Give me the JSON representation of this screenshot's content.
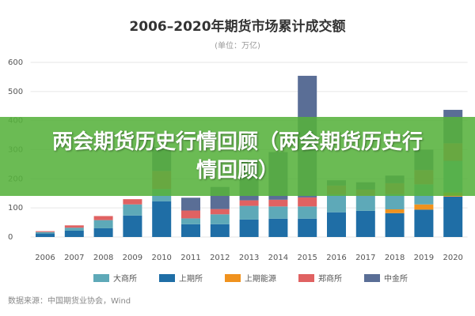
{
  "chart_data": {
    "type": "stacked_bar",
    "title": "2006–2020年期货市场累计成交额",
    "subtitle": "(单位：万亿)",
    "categories": [
      "2006",
      "2007",
      "2008",
      "2009",
      "2010",
      "2011",
      "2012",
      "2013",
      "2014",
      "2015",
      "2016",
      "2017",
      "2018",
      "2019",
      "2020"
    ],
    "series": [
      {
        "name": "大商所",
        "color": "#5ea9b8",
        "values": [
          5,
          10,
          28,
          38,
          42,
          20,
          34,
          47,
          42,
          42,
          61,
          52,
          52,
          69,
          109
        ]
      },
      {
        "name": "上期所",
        "color": "#1f6ea6",
        "values": [
          12,
          22,
          30,
          74,
          123,
          44,
          44,
          60,
          63,
          63,
          85,
          90,
          82,
          94,
          139
        ]
      },
      {
        "name": "上期能源",
        "color": "#f0921e",
        "values": [
          0,
          0,
          0,
          0,
          0,
          0,
          0,
          0,
          0,
          0,
          0,
          0,
          13,
          18,
          14
        ]
      },
      {
        "name": "郑商所",
        "color": "#e06262",
        "values": [
          3,
          8,
          14,
          18,
          62,
          27,
          18,
          19,
          23,
          31,
          31,
          21,
          38,
          49,
          60
        ]
      },
      {
        "name": "中金所",
        "color": "#5a6e96",
        "values": [
          0,
          0,
          0,
          0,
          82,
          44,
          76,
          141,
          164,
          418,
          18,
          25,
          26,
          70,
          115
        ]
      }
    ],
    "stack_order": [
      1,
      2,
      0,
      3,
      4
    ],
    "ylim": [
      0,
      600
    ],
    "yticks": [
      0,
      100,
      200,
      300,
      400,
      500,
      600
    ],
    "grid": true,
    "source": "数据来源：中国期货业协会，Wind",
    "banner": "两会期货历史行情回顾（两会期货历史行情回顾）"
  }
}
